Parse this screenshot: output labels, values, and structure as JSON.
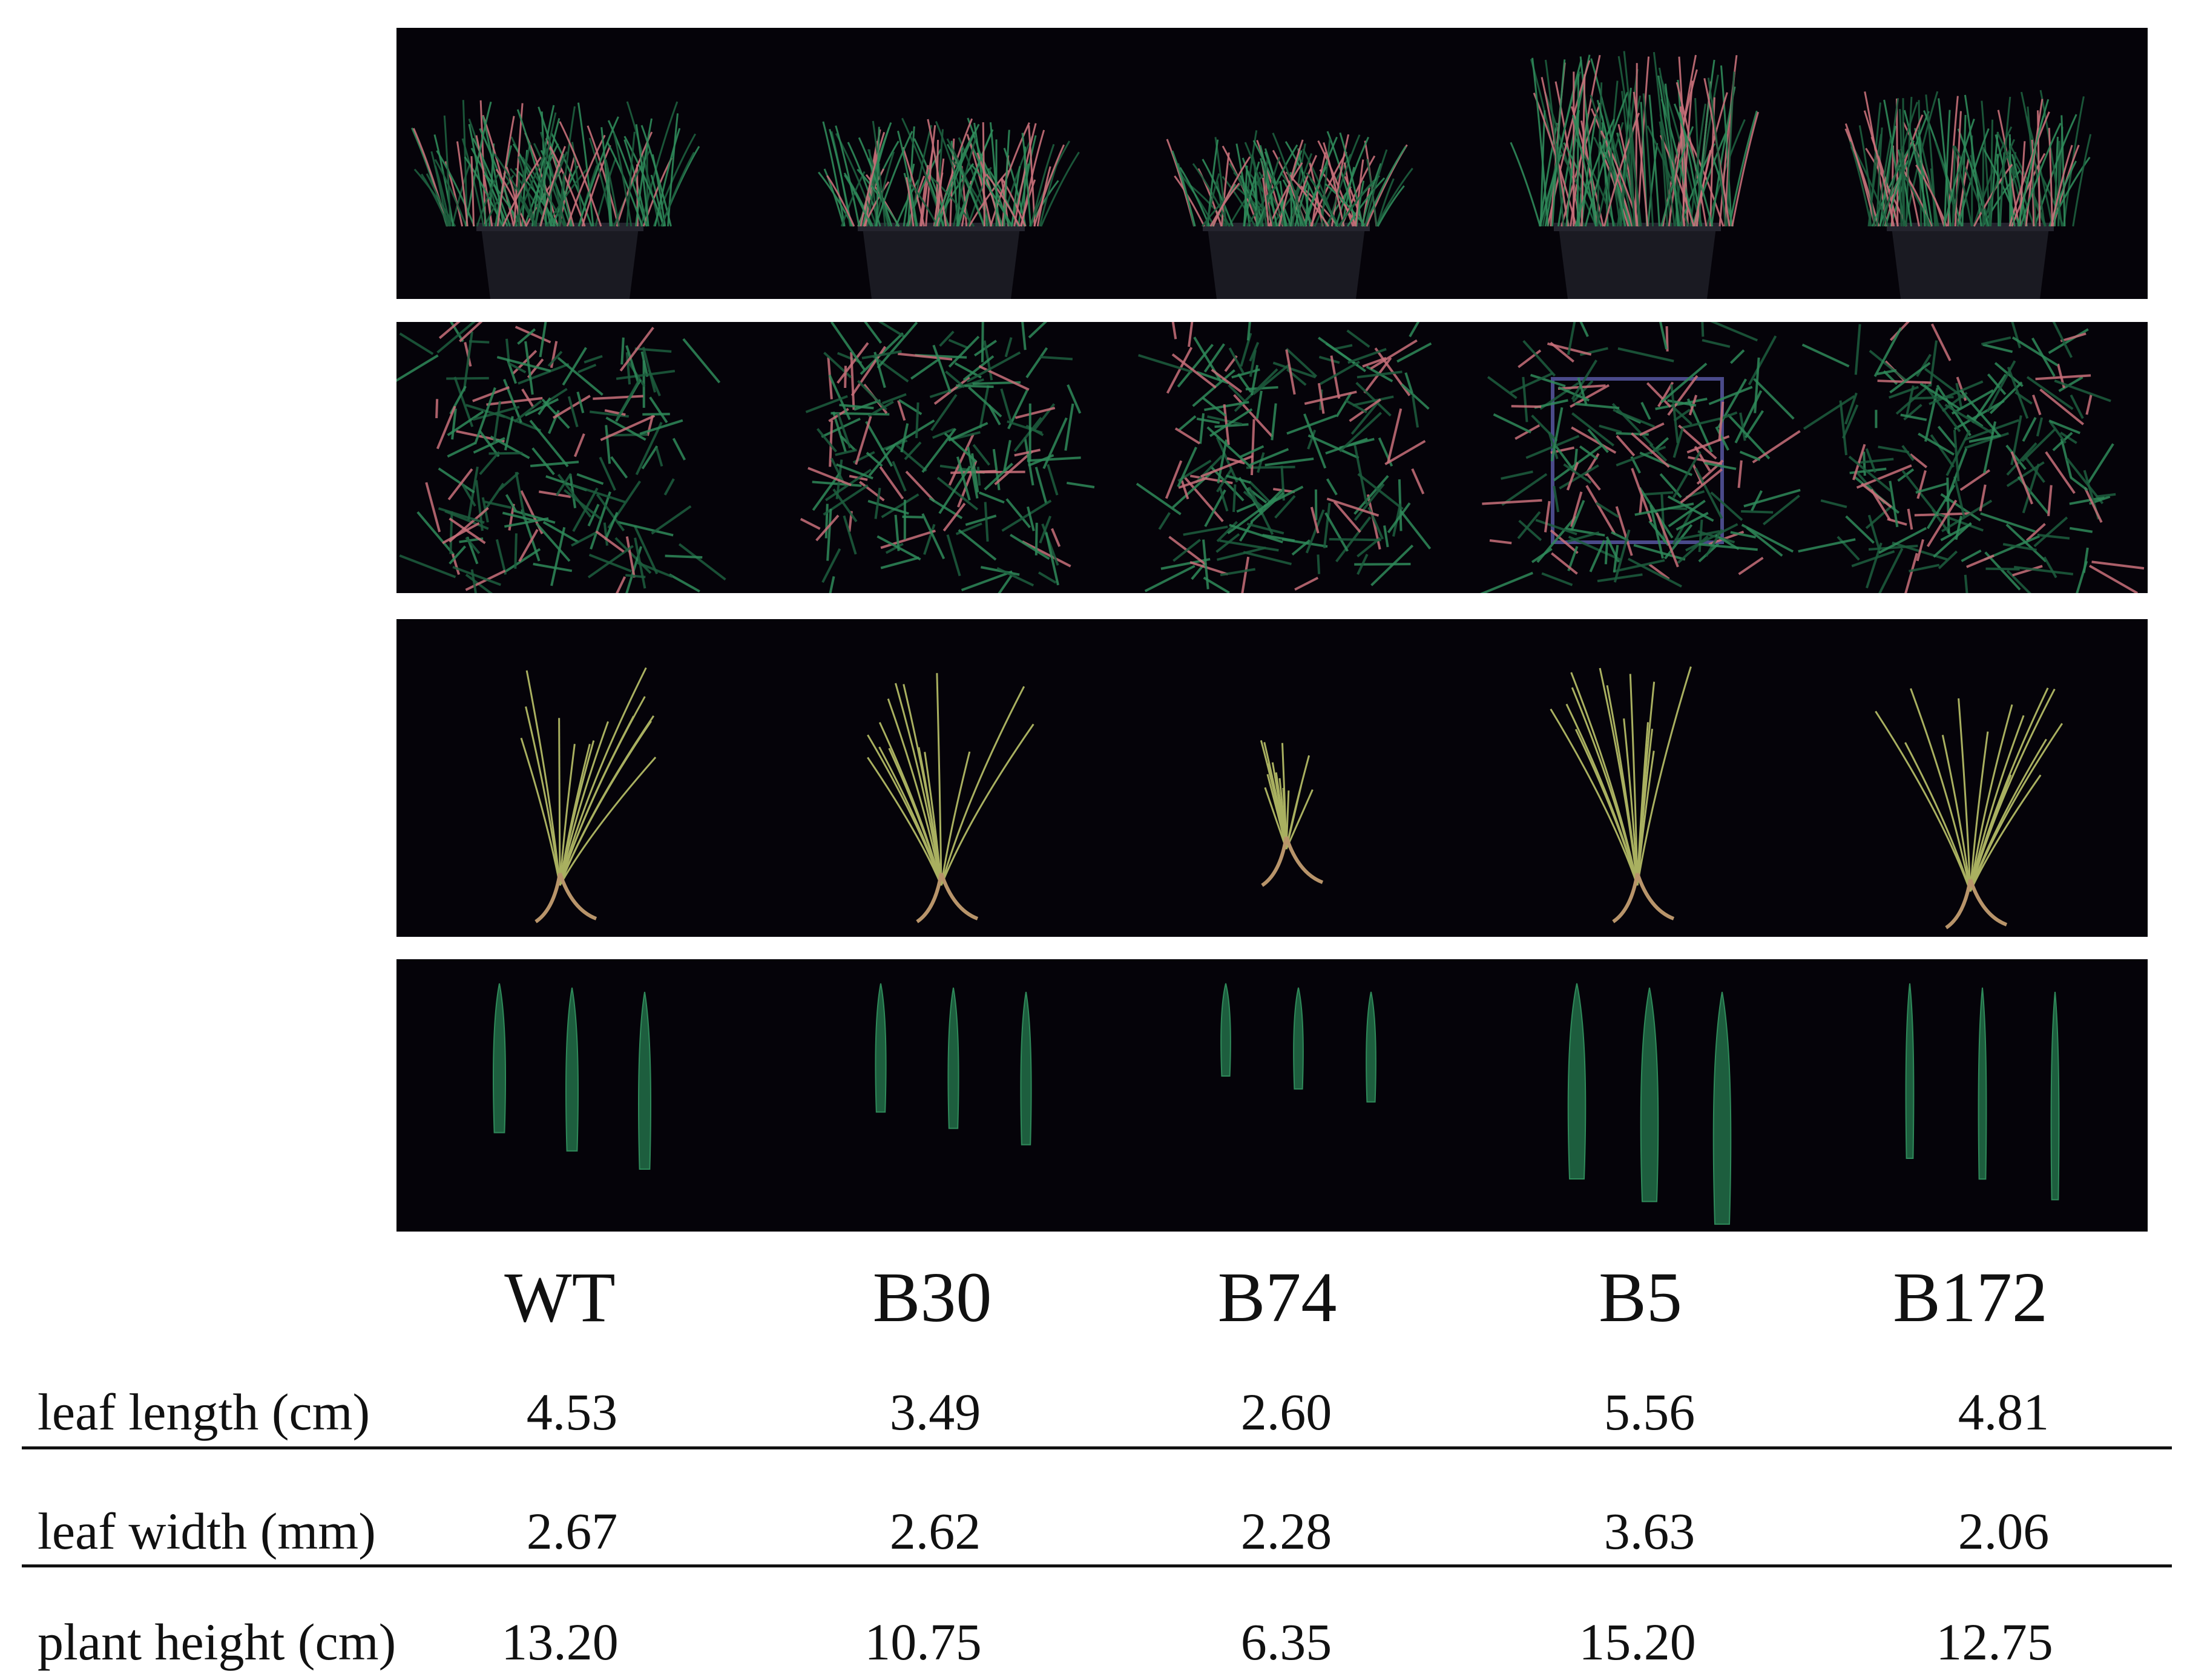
{
  "genotypes": [
    "WT",
    "B30",
    "B74",
    "B5",
    "B172"
  ],
  "panels": [
    {
      "view": "side view of potted plants",
      "bg": "#050309"
    },
    {
      "view": "top view of potted plants",
      "bg": "#050309"
    },
    {
      "view": "single plant with roots",
      "bg": "#050309"
    },
    {
      "view": "three excised leaves",
      "bg": "#050309"
    }
  ],
  "table": {
    "rows": [
      {
        "label": "leaf length (cm)",
        "values": [
          "4.53",
          "3.49",
          "2.60",
          "5.56",
          "4.81"
        ]
      },
      {
        "label": "leaf width (mm)",
        "values": [
          "2.67",
          "2.62",
          "2.28",
          "3.63",
          "2.06"
        ]
      },
      {
        "label": "plant height (cm)",
        "values": [
          "13.20",
          "10.75",
          "6.35",
          "15.20",
          "12.75"
        ]
      }
    ]
  },
  "colors": {
    "leaf": "#2f8a5a",
    "leaf_dark": "#1d5e3e",
    "stem_pink": "#c8707a",
    "pot": "#1a1a22",
    "root": "#b8946a",
    "seedling": "#a9b060"
  }
}
